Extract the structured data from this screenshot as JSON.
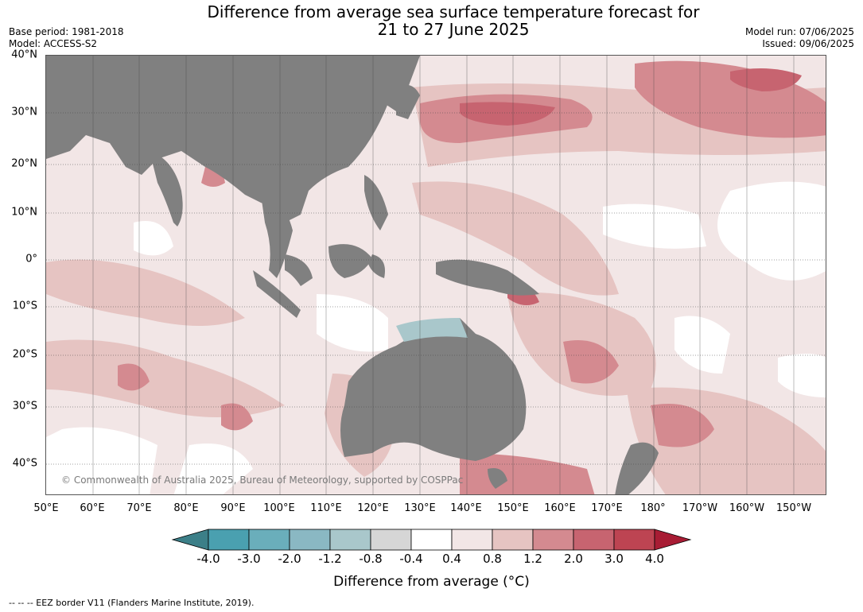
{
  "title_line1": "Difference from average sea surface temperature forecast for",
  "title_line2": "21 to 27 June 2025",
  "meta": {
    "base_period": "Base period: 1981-2018",
    "model": "Model: ACCESS-S2",
    "model_run": "Model run: 07/06/2025",
    "issued": "Issued: 09/06/2025"
  },
  "lat_labels": [
    "40°N",
    "30°N",
    "20°N",
    "10°N",
    "0°",
    "10°S",
    "20°S",
    "30°S",
    "40°S"
  ],
  "lon_labels": [
    "50°E",
    "60°E",
    "70°E",
    "80°E",
    "90°E",
    "100°E",
    "110°E",
    "120°E",
    "130°E",
    "140°E",
    "150°E",
    "160°E",
    "170°E",
    "180°",
    "170°W",
    "160°W",
    "150°W"
  ],
  "copyright": "© Commonwealth of Australia 2025, Bureau of Meteorology, supported by COSPPac",
  "colorbar": {
    "title": "Difference from average (°C)",
    "tick_labels": [
      "-4.0",
      "-3.0",
      "-2.0",
      "-1.2",
      "-0.8",
      "-0.4",
      "0.4",
      "0.8",
      "1.2",
      "2.0",
      "3.0",
      "4.0"
    ],
    "colors": [
      "#3c7f88",
      "#4aa0b0",
      "#6aaebb",
      "#8ab8c3",
      "#a9c7cb",
      "#d6d6d6",
      "#ffffff",
      "#f2e6e6",
      "#e6c4c2",
      "#d48a90",
      "#c76470",
      "#bd4452",
      "#a81c34"
    ]
  },
  "land_color": "#808080",
  "eez_note": "--  --  -- EEZ border V11 (Flanders Marine Institute, 2019)."
}
